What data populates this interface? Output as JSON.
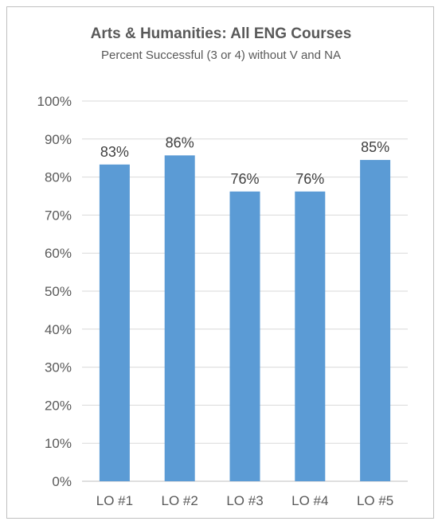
{
  "chart_data": {
    "type": "bar",
    "title": "Arts & Humanities:  All ENG Courses",
    "subtitle": "Percent Successful (3 or 4) without V and NA",
    "categories": [
      "LO #1",
      "LO #2",
      "LO #3",
      "LO #4",
      "LO #5"
    ],
    "values": [
      83.3,
      85.7,
      76.2,
      76.2,
      84.5
    ],
    "data_labels": [
      "83%",
      "86%",
      "76%",
      "76%",
      "85%"
    ],
    "ylim": [
      0,
      100
    ],
    "yticks": [
      0,
      10,
      20,
      30,
      40,
      50,
      60,
      70,
      80,
      90,
      100
    ],
    "ytick_labels": [
      "0%",
      "10%",
      "20%",
      "30%",
      "40%",
      "50%",
      "60%",
      "70%",
      "80%",
      "90%",
      "100%"
    ],
    "xlabel": "",
    "ylabel": "",
    "grid": true,
    "legend": "none",
    "colors": {
      "bar": "#5b9bd5",
      "grid": "#d9d9d9",
      "axis": "#bfbfbf",
      "text": "#595959"
    }
  }
}
